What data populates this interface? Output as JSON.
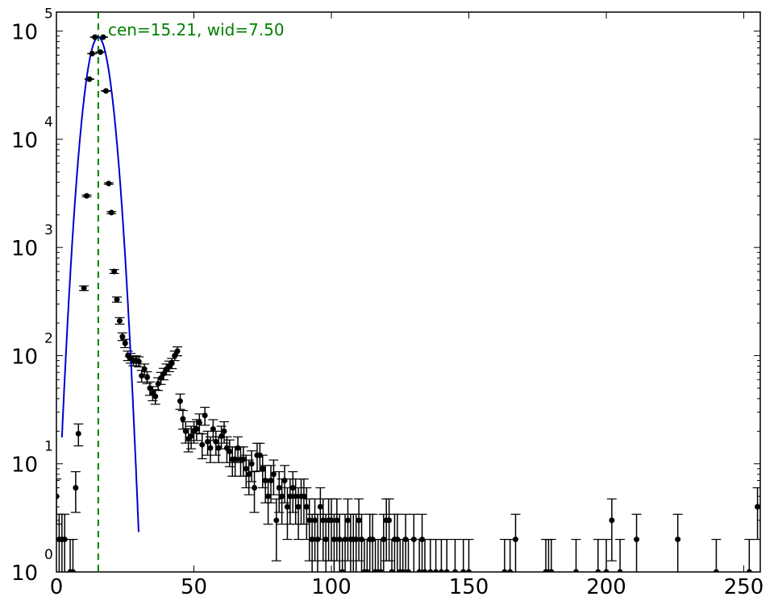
{
  "chart_data": {
    "type": "scatter",
    "title": "",
    "xlabel": "",
    "ylabel": "",
    "xlim": [
      0,
      256
    ],
    "ylim": [
      1,
      150000
    ],
    "yscale": "log",
    "grid": false,
    "legend": "none",
    "x_ticks": [
      {
        "value": 0,
        "label": "0"
      },
      {
        "value": 50,
        "label": "50"
      },
      {
        "value": 100,
        "label": "100"
      },
      {
        "value": 150,
        "label": "150"
      },
      {
        "value": 200,
        "label": "200"
      },
      {
        "value": 250,
        "label": "250"
      }
    ],
    "y_ticks": [
      {
        "value": 1,
        "base": "10",
        "exp": "0"
      },
      {
        "value": 10,
        "base": "10",
        "exp": "1"
      },
      {
        "value": 100,
        "base": "10",
        "exp": "2"
      },
      {
        "value": 1000,
        "base": "10",
        "exp": "3"
      },
      {
        "value": 10000,
        "base": "10",
        "exp": "4"
      },
      {
        "value": 100000,
        "base": "10",
        "exp": "5"
      }
    ],
    "annotation": {
      "text": "cen=15.21, wid=7.50",
      "color": "#008000"
    },
    "vline": {
      "x": 15.21,
      "color": "#008000",
      "style": "dashed"
    },
    "fit": {
      "color": "#0000cc",
      "center": 15.21,
      "peak": 88000,
      "sigma": 3.2
    },
    "data_series": {
      "color": "#000000",
      "points": [
        [
          0,
          5
        ],
        [
          1,
          2
        ],
        [
          2,
          2
        ],
        [
          3,
          2
        ],
        [
          5,
          1
        ],
        [
          6,
          1
        ],
        [
          7,
          6
        ],
        [
          8,
          19
        ],
        [
          10,
          420
        ],
        [
          11,
          3000
        ],
        [
          12,
          36000
        ],
        [
          13,
          62000
        ],
        [
          14,
          88000
        ],
        [
          16,
          64000
        ],
        [
          17,
          88000
        ],
        [
          18,
          28000
        ],
        [
          19,
          3900
        ],
        [
          20,
          2100
        ],
        [
          21,
          600
        ],
        [
          22,
          330
        ],
        [
          23,
          210
        ],
        [
          24,
          150
        ],
        [
          25,
          130
        ],
        [
          26,
          100
        ],
        [
          27,
          95
        ],
        [
          28,
          90
        ],
        [
          29,
          90
        ],
        [
          30,
          88
        ],
        [
          31,
          65
        ],
        [
          32,
          75
        ],
        [
          33,
          63
        ],
        [
          34,
          50
        ],
        [
          35,
          45
        ],
        [
          36,
          42
        ],
        [
          37,
          55
        ],
        [
          38,
          62
        ],
        [
          39,
          68
        ],
        [
          40,
          75
        ],
        [
          41,
          80
        ],
        [
          42,
          85
        ],
        [
          43,
          100
        ],
        [
          44,
          110
        ],
        [
          45,
          38
        ],
        [
          46,
          26
        ],
        [
          47,
          20
        ],
        [
          48,
          17
        ],
        [
          49,
          18
        ],
        [
          50,
          20
        ],
        [
          51,
          21
        ],
        [
          52,
          24
        ],
        [
          53,
          15
        ],
        [
          54,
          28
        ],
        [
          55,
          16
        ],
        [
          56,
          14
        ],
        [
          57,
          21
        ],
        [
          58,
          16
        ],
        [
          59,
          14
        ],
        [
          60,
          18
        ],
        [
          61,
          20
        ],
        [
          62,
          14
        ],
        [
          63,
          13
        ],
        [
          64,
          11
        ],
        [
          65,
          11
        ],
        [
          66,
          14
        ],
        [
          67,
          11
        ],
        [
          68,
          11
        ],
        [
          69,
          9
        ],
        [
          70,
          8
        ],
        [
          71,
          10
        ],
        [
          72,
          6
        ],
        [
          73,
          12
        ],
        [
          74,
          12
        ],
        [
          75,
          9
        ],
        [
          76,
          7
        ],
        [
          77,
          5
        ],
        [
          78,
          7
        ],
        [
          79,
          8
        ],
        [
          80,
          3
        ],
        [
          81,
          6
        ],
        [
          82,
          5
        ],
        [
          83,
          7
        ],
        [
          84,
          4
        ],
        [
          85,
          5
        ],
        [
          86,
          6
        ],
        [
          87,
          5
        ],
        [
          88,
          4
        ],
        [
          89,
          5
        ],
        [
          90,
          5
        ],
        [
          91,
          4
        ],
        [
          92,
          3
        ],
        [
          93,
          2
        ],
        [
          94,
          3
        ],
        [
          95,
          2
        ],
        [
          96,
          4
        ],
        [
          97,
          3
        ],
        [
          98,
          2
        ],
        [
          99,
          3
        ],
        [
          100,
          3
        ],
        [
          101,
          2
        ],
        [
          102,
          3
        ],
        [
          103,
          2
        ],
        [
          104,
          1
        ],
        [
          105,
          2
        ],
        [
          106,
          3
        ],
        [
          107,
          2
        ],
        [
          108,
          2
        ],
        [
          109,
          2
        ],
        [
          110,
          3
        ],
        [
          111,
          2
        ],
        [
          112,
          1
        ],
        [
          113,
          1
        ],
        [
          114,
          2
        ],
        [
          115,
          2
        ],
        [
          116,
          1
        ],
        [
          117,
          1
        ],
        [
          118,
          1
        ],
        [
          119,
          2
        ],
        [
          120,
          3
        ],
        [
          121,
          3
        ],
        [
          122,
          1
        ],
        [
          123,
          2
        ],
        [
          124,
          2
        ],
        [
          125,
          1
        ],
        [
          126,
          1
        ],
        [
          127,
          2
        ],
        [
          128,
          1
        ],
        [
          130,
          2
        ],
        [
          132,
          1
        ],
        [
          133,
          2
        ],
        [
          134,
          1
        ],
        [
          136,
          1
        ],
        [
          138,
          1
        ],
        [
          140,
          1
        ],
        [
          142,
          1
        ],
        [
          145,
          1
        ],
        [
          148,
          1
        ],
        [
          150,
          1
        ],
        [
          163,
          1
        ],
        [
          165,
          1
        ],
        [
          167,
          2
        ],
        [
          178,
          1
        ],
        [
          179,
          1
        ],
        [
          180,
          1
        ],
        [
          189,
          1
        ],
        [
          197,
          1
        ],
        [
          200,
          1
        ],
        [
          202,
          3
        ],
        [
          205,
          1
        ],
        [
          211,
          2
        ],
        [
          226,
          2
        ],
        [
          240,
          1
        ],
        [
          252,
          1
        ],
        [
          255,
          4
        ]
      ]
    }
  }
}
